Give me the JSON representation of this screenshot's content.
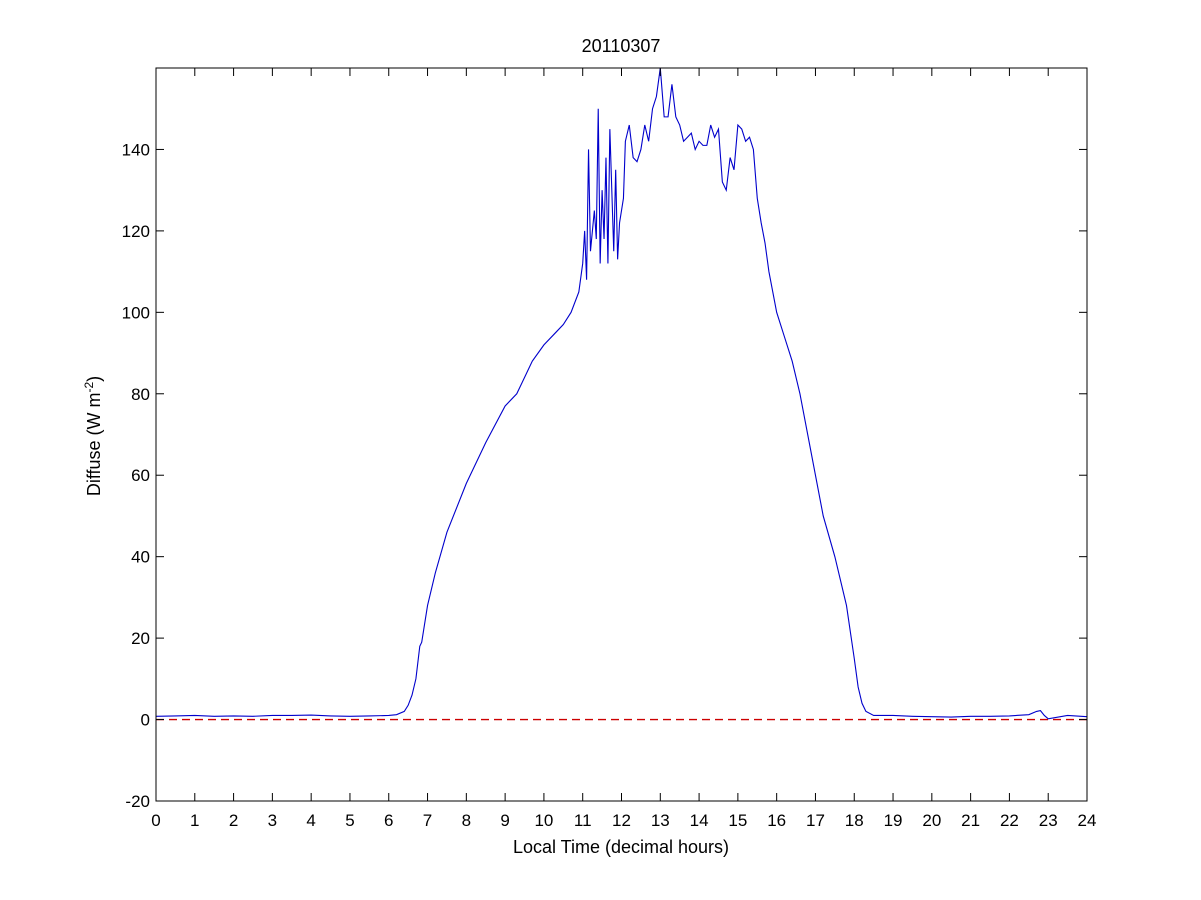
{
  "chart_data": {
    "type": "line",
    "title": "20110307",
    "xlabel": "Local Time (decimal hours)",
    "ylabel": {
      "text": "Diffuse (W m",
      "sup": "-2",
      "close": ")"
    },
    "xlim": [
      0,
      24
    ],
    "ylim": [
      -20,
      160
    ],
    "xticks": [
      0,
      1,
      2,
      3,
      4,
      5,
      6,
      7,
      8,
      9,
      10,
      11,
      12,
      13,
      14,
      15,
      16,
      17,
      18,
      19,
      20,
      21,
      22,
      23,
      24
    ],
    "yticks": [
      -20,
      0,
      20,
      40,
      60,
      80,
      100,
      120,
      140
    ],
    "grid": false,
    "legend": "none",
    "colors": {
      "series": "#0000cc",
      "zero_line": "#cc0000",
      "axes": "#000000",
      "background": "#ffffff"
    },
    "series": [
      {
        "style": "solid",
        "x": [
          0,
          0.5,
          1,
          1.5,
          2,
          2.5,
          3,
          3.5,
          4,
          4.5,
          5,
          5.5,
          6,
          6.2,
          6.4,
          6.5,
          6.6,
          6.7,
          6.8,
          6.85,
          6.9,
          7,
          7.2,
          7.5,
          8,
          8.5,
          9,
          9.3,
          9.5,
          9.7,
          10,
          10.3,
          10.5,
          10.7,
          10.9,
          11,
          11.05,
          11.1,
          11.15,
          11.2,
          11.3,
          11.35,
          11.4,
          11.45,
          11.5,
          11.55,
          11.6,
          11.65,
          11.7,
          11.8,
          11.85,
          11.9,
          11.95,
          12,
          12.05,
          12.1,
          12.2,
          12.3,
          12.4,
          12.5,
          12.6,
          12.7,
          12.8,
          12.9,
          13,
          13.1,
          13.2,
          13.3,
          13.4,
          13.5,
          13.6,
          13.7,
          13.8,
          13.9,
          14,
          14.1,
          14.2,
          14.3,
          14.4,
          14.5,
          14.6,
          14.7,
          14.8,
          14.9,
          15,
          15.1,
          15.2,
          15.3,
          15.4,
          15.5,
          15.6,
          15.7,
          15.8,
          15.9,
          16,
          16.2,
          16.4,
          16.6,
          16.8,
          17,
          17.2,
          17.5,
          17.8,
          18,
          18.1,
          18.2,
          18.3,
          18.5,
          19,
          19.5,
          20,
          20.5,
          21,
          21.5,
          22,
          22.5,
          22.7,
          22.8,
          22.9,
          23,
          23.5,
          24
        ],
        "y": [
          0.8,
          0.9,
          1.0,
          0.8,
          0.9,
          0.8,
          1.0,
          1.0,
          1.1,
          0.9,
          0.8,
          0.9,
          1.0,
          1.2,
          2.0,
          3.5,
          6,
          10,
          18,
          19,
          22,
          28,
          36,
          46,
          58,
          68,
          77,
          80,
          84,
          88,
          92,
          95,
          97,
          100,
          105,
          112,
          120,
          108,
          140,
          115,
          125,
          118,
          150,
          112,
          130,
          118,
          138,
          112,
          145,
          115,
          135,
          113,
          122,
          125,
          128,
          142,
          146,
          138,
          137,
          140,
          146,
          142,
          150,
          153,
          160,
          148,
          148,
          156,
          148,
          146,
          142,
          143,
          144,
          140,
          142,
          141,
          141,
          146,
          143,
          145,
          132,
          130,
          138,
          135,
          146,
          145,
          142,
          143,
          140,
          128,
          122,
          117,
          110,
          105,
          100,
          94,
          88,
          80,
          70,
          60,
          50,
          40,
          28,
          15,
          8,
          4,
          2,
          1.0,
          1.0,
          0.8,
          0.7,
          0.6,
          0.8,
          0.8,
          0.9,
          1.2,
          2.0,
          2.2,
          1.0,
          0.2,
          1.0,
          0.7
        ]
      },
      {
        "style": "dashed",
        "x": [
          0,
          24
        ],
        "y": [
          0,
          0
        ]
      }
    ]
  }
}
